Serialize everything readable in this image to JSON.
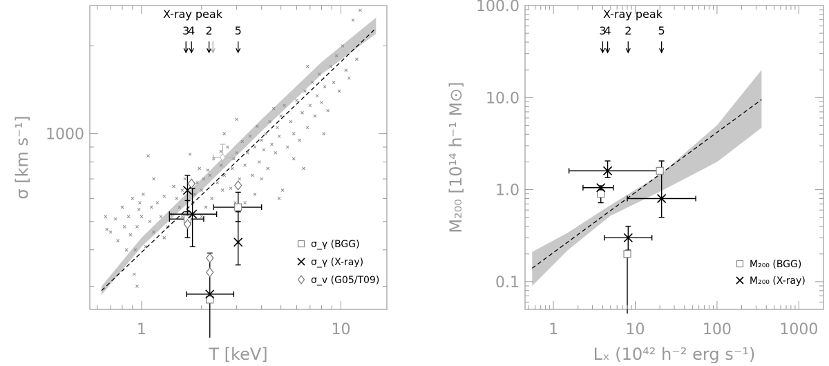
{
  "colors": {
    "band": "#c8c8c8",
    "axis": "#999999",
    "scatter": "#8a8a8a",
    "marker": "#000000",
    "faint": "#bbbbbb"
  },
  "chart_data": [
    {
      "type": "scatter",
      "xlabel": "T [keV]",
      "ylabel": "σ [km s⁻¹]",
      "xscale": "log",
      "yscale": "log",
      "xlim": [
        0.55,
        17
      ],
      "ylim": [
        250,
        2750
      ],
      "xticks": [
        {
          "v": 1,
          "label": "1"
        },
        {
          "v": 10,
          "label": "10"
        }
      ],
      "yticks": [
        {
          "v": 1000,
          "label": "1000"
        }
      ],
      "peak_title": "X-ray peak",
      "peak_markers": [
        {
          "label": "3",
          "x": 1.67,
          "color": "#000000"
        },
        {
          "label": "4",
          "x": 1.78,
          "color": "#000000"
        },
        {
          "label": "2",
          "x": 2.18,
          "color": "#000000"
        },
        {
          "label": "",
          "x": 2.28,
          "color": "#aaaaaa"
        },
        {
          "label": "5",
          "x": 3.05,
          "color": "#000000"
        }
      ],
      "fit": {
        "x": [
          0.63,
          15
        ],
        "y": [
          290,
          2300
        ]
      },
      "band": {
        "x": [
          0.63,
          1,
          2,
          4,
          8,
          15
        ],
        "lower": [
          280,
          410,
          640,
          1020,
          1600,
          2200
        ],
        "upper": [
          300,
          440,
          700,
          1120,
          1760,
          2500
        ]
      },
      "background_points": [
        [
          0.66,
          520
        ],
        [
          0.67,
          470
        ],
        [
          0.7,
          460
        ],
        [
          0.74,
          510
        ],
        [
          0.76,
          430
        ],
        [
          0.8,
          560
        ],
        [
          0.82,
          480
        ],
        [
          0.84,
          400
        ],
        [
          0.86,
          520
        ],
        [
          0.88,
          450
        ],
        [
          0.9,
          600
        ],
        [
          0.92,
          330
        ],
        [
          0.93,
          400
        ],
        [
          0.95,
          480
        ],
        [
          0.97,
          550
        ],
        [
          0.98,
          580
        ],
        [
          1.0,
          520
        ],
        [
          1.02,
          620
        ],
        [
          1.05,
          410
        ],
        [
          1.08,
          840
        ],
        [
          1.1,
          500
        ],
        [
          1.12,
          560
        ],
        [
          1.15,
          460
        ],
        [
          1.2,
          580
        ],
        [
          1.25,
          520
        ],
        [
          1.3,
          610
        ],
        [
          1.35,
          480
        ],
        [
          1.4,
          530
        ],
        [
          1.45,
          660
        ],
        [
          1.5,
          600
        ],
        [
          1.55,
          560
        ],
        [
          1.6,
          640
        ],
        [
          1.65,
          700
        ],
        [
          1.7,
          500
        ],
        [
          1.75,
          850
        ],
        [
          1.8,
          580
        ],
        [
          1.85,
          620
        ],
        [
          1.9,
          680
        ],
        [
          1.95,
          760
        ],
        [
          2.0,
          640
        ],
        [
          2.05,
          700
        ],
        [
          2.1,
          560
        ],
        [
          2.15,
          750
        ],
        [
          2.2,
          720
        ],
        [
          2.25,
          600
        ],
        [
          2.3,
          820
        ],
        [
          2.4,
          680
        ],
        [
          2.5,
          780
        ],
        [
          2.55,
          640
        ],
        [
          2.6,
          720
        ],
        [
          2.7,
          900
        ],
        [
          2.8,
          650
        ],
        [
          2.85,
          760
        ],
        [
          2.9,
          820
        ],
        [
          2.95,
          580
        ],
        [
          3.0,
          860
        ],
        [
          3.1,
          700
        ],
        [
          3.2,
          940
        ],
        [
          3.3,
          780
        ],
        [
          3.4,
          860
        ],
        [
          3.5,
          980
        ],
        [
          3.6,
          720
        ],
        [
          3.7,
          900
        ],
        [
          3.8,
          1060
        ],
        [
          3.9,
          800
        ],
        [
          4.0,
          950
        ],
        [
          4.1,
          880
        ],
        [
          4.2,
          1000
        ],
        [
          4.3,
          760
        ],
        [
          4.4,
          1100
        ],
        [
          4.5,
          920
        ],
        [
          4.6,
          1220
        ],
        [
          4.7,
          860
        ],
        [
          4.8,
          1050
        ],
        [
          4.9,
          980
        ],
        [
          5.0,
          1150
        ],
        [
          5.1,
          640
        ],
        [
          5.2,
          1250
        ],
        [
          5.4,
          900
        ],
        [
          5.6,
          1100
        ],
        [
          5.8,
          1000
        ],
        [
          6.0,
          1300
        ],
        [
          6.2,
          950
        ],
        [
          6.4,
          1180
        ],
        [
          6.6,
          1400
        ],
        [
          6.8,
          1050
        ],
        [
          7.0,
          1250
        ],
        [
          7.2,
          1500
        ],
        [
          7.4,
          1150
        ],
        [
          7.6,
          1350
        ],
        [
          7.8,
          1600
        ],
        [
          8.0,
          1280
        ],
        [
          8.3,
          1450
        ],
        [
          8.6,
          1200
        ],
        [
          8.9,
          1700
        ],
        [
          9.2,
          1500
        ],
        [
          9.5,
          1850
        ],
        [
          9.8,
          1400
        ],
        [
          10.2,
          2000
        ],
        [
          10.6,
          1650
        ],
        [
          11.0,
          1550
        ],
        [
          11.5,
          2450
        ],
        [
          12.0,
          1800
        ],
        [
          12.5,
          2650
        ],
        [
          3.3,
          580
        ],
        [
          4.0,
          700
        ],
        [
          2.5,
          870
        ],
        [
          6.5,
          760
        ],
        [
          1.3,
          440
        ],
        [
          1.6,
          520
        ],
        [
          0.95,
          300
        ],
        [
          5.8,
          820
        ],
        [
          4.9,
          600
        ],
        [
          3.7,
          620
        ],
        [
          2.6,
          1000
        ],
        [
          2.0,
          520
        ],
        [
          8.2,
          1000
        ],
        [
          1.15,
          700
        ],
        [
          3.0,
          1120
        ],
        [
          6.8,
          1700
        ]
      ],
      "fits_marker": {
        "x": 2.55,
        "y": 830,
        "xlo": 2.3,
        "xhi": 2.85,
        "ylo": 770,
        "yhi": 920
      },
      "series": [
        {
          "name": "σ_γ (BGG)",
          "marker": "square",
          "points": [
            {
              "x": 1.7,
              "y": 510,
              "xlo": 1.38,
              "xhi": 2.05,
              "ylo": 440,
              "yhi": 590
            },
            {
              "x": 3.05,
              "y": 560,
              "xlo": 2.3,
              "xhi": 4.0,
              "ylo": 500,
              "yhi": 630
            },
            {
              "x": 2.2,
              "y": 270,
              "xlo": 2.2,
              "xhi": 2.2,
              "ylo": 270,
              "yhi": 270
            }
          ]
        },
        {
          "name": "σ_γ (X-ray)",
          "marker": "cross",
          "points": [
            {
              "x": 1.8,
              "y": 530,
              "xlo": 1.38,
              "xhi": 2.38,
              "ylo": 410,
              "yhi": 650
            },
            {
              "x": 1.7,
              "y": 640,
              "xlo": 1.7,
              "xhi": 1.7,
              "ylo": 540,
              "yhi": 720
            },
            {
              "x": 2.2,
              "y": 282,
              "xlo": 1.68,
              "xhi": 2.9,
              "ylo": 200,
              "yhi": 390
            },
            {
              "x": 3.05,
              "y": 425,
              "xlo": 3.05,
              "xhi": 3.05,
              "ylo": 355,
              "yhi": 540
            }
          ]
        },
        {
          "name": "σ_v (G05/T09)",
          "marker": "diamond",
          "points": [
            {
              "x": 1.78,
              "y": 675
            },
            {
              "x": 3.05,
              "y": 665
            },
            {
              "x": 1.7,
              "y": 490
            },
            {
              "x": 2.2,
              "y": 375
            },
            {
              "x": 2.2,
              "y": 335
            }
          ]
        }
      ]
    },
    {
      "type": "scatter",
      "xlabel": "Lₓ (10⁴² h⁻² erg s⁻¹)",
      "ylabel": "M₂₀₀ [10¹⁴ h⁻¹ M⊙]",
      "xscale": "log",
      "yscale": "log",
      "xlim": [
        0.45,
        2000
      ],
      "ylim": [
        0.05,
        100
      ],
      "xticks": [
        {
          "v": 1,
          "label": "1"
        },
        {
          "v": 10,
          "label": "10"
        },
        {
          "v": 100,
          "label": "100"
        },
        {
          "v": 1000,
          "label": "1000"
        }
      ],
      "yticks": [
        {
          "v": 0.1,
          "label": "0.1"
        },
        {
          "v": 1,
          "label": "1.0"
        },
        {
          "v": 10,
          "label": "10.0"
        },
        {
          "v": 100,
          "label": "100.0"
        }
      ],
      "peak_title": "X-ray peak",
      "peak_markers": [
        {
          "label": "3",
          "x": 4.0,
          "color": "#000000"
        },
        {
          "label": "4",
          "x": 4.6,
          "color": "#000000"
        },
        {
          "label": "2",
          "x": 8.2,
          "color": "#000000"
        },
        {
          "label": "5",
          "x": 21,
          "color": "#000000"
        }
      ],
      "fit": {
        "x": [
          0.55,
          350
        ],
        "y": [
          0.14,
          9.5
        ]
      },
      "band": {
        "x": [
          0.55,
          1.5,
          5,
          20,
          100,
          350
        ],
        "lower": [
          0.09,
          0.22,
          0.52,
          0.95,
          2.0,
          4.7
        ],
        "upper": [
          0.21,
          0.34,
          0.68,
          1.45,
          5.0,
          20.0
        ]
      },
      "series": [
        {
          "name": "M₂₀₀ (BGG)",
          "marker": "square",
          "points": [
            {
              "x": 3.8,
              "y": 0.9,
              "xlo": 3.8,
              "xhi": 3.8,
              "ylo": 0.72,
              "yhi": 1.1
            },
            {
              "x": 8.0,
              "y": 0.2,
              "xlo": 8.0,
              "xhi": 8.0,
              "ylo": 0.045,
              "yhi": 0.2
            },
            {
              "x": 20,
              "y": 1.6,
              "xlo": 20,
              "xhi": 20,
              "ylo": 1.6,
              "yhi": 1.6
            }
          ]
        },
        {
          "name": "M₂₀₀ (X-ray)",
          "marker": "cross",
          "points": [
            {
              "x": 4.6,
              "y": 1.6,
              "xlo": 1.55,
              "xhi": 20,
              "ylo": 1.35,
              "yhi": 2.05
            },
            {
              "x": 3.8,
              "y": 1.05,
              "xlo": 2.3,
              "xhi": 5.4,
              "ylo": 1.0,
              "yhi": 1.05
            },
            {
              "x": 8.2,
              "y": 0.3,
              "xlo": 4.2,
              "xhi": 16,
              "ylo": 0.22,
              "yhi": 0.4
            },
            {
              "x": 21,
              "y": 0.8,
              "xlo": 8.0,
              "xhi": 55,
              "ylo": 0.5,
              "yhi": 2.05
            }
          ]
        }
      ]
    }
  ]
}
